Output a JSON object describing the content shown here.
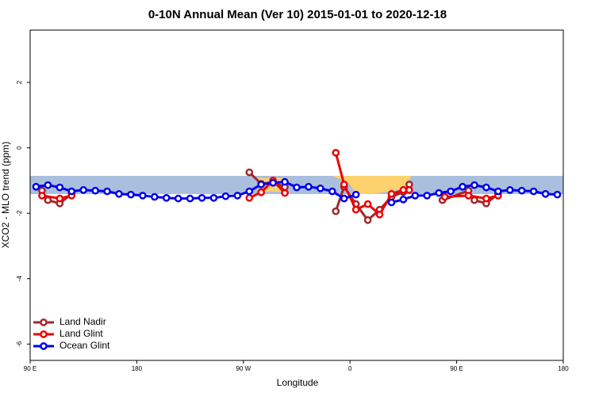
{
  "chart_data": {
    "type": "line",
    "title": "0-10N Annual Mean (Ver 10)   2015-01-01 to 2020-12-18",
    "xlabel": "Longitude",
    "ylabel": "XCO2 - MLO trend (ppm)",
    "xlim": [
      90,
      540
    ],
    "ylim": [
      -6.5,
      3.6
    ],
    "xticks": [
      {
        "value": 90,
        "label": "90 E"
      },
      180,
      {
        "value": 270,
        "label": "90 W"
      },
      {
        "value": 360,
        "label": "0"
      },
      {
        "value": 450,
        "label": "90 E"
      },
      {
        "value": 540,
        "label": "180"
      }
    ],
    "yticks": [
      -6,
      -4,
      -2,
      0,
      2
    ],
    "legend": "bottom-left",
    "series": [
      {
        "name": "Land Nadir",
        "color": "#a0282d",
        "x": [
          100,
          105,
          115,
          125,
          200,
          275,
          285,
          295,
          305,
          330,
          348,
          355,
          365,
          375,
          385,
          395,
          405,
          410,
          425,
          438,
          460,
          465,
          475,
          485
        ],
        "values": [
          -1.31,
          -1.6,
          -1.7,
          -1.41,
          null,
          -0.75,
          -1.1,
          -1.05,
          -1.2,
          null,
          -1.94,
          -1.19,
          -1.72,
          -2.21,
          -1.89,
          -1.5,
          -1.35,
          -1.12,
          null,
          -1.6,
          -1.31,
          -1.6,
          -1.7,
          -1.41
        ]
      },
      {
        "name": "Land Glint",
        "color": "#ee0000",
        "x": [
          100,
          115,
          125,
          200,
          275,
          285,
          295,
          305,
          330,
          348,
          355,
          365,
          375,
          385,
          395,
          405,
          410,
          425,
          440,
          460,
          475,
          485
        ],
        "values": [
          -1.46,
          -1.55,
          -1.46,
          null,
          -1.53,
          -1.36,
          -1.0,
          -1.38,
          null,
          -0.15,
          -1.12,
          -1.89,
          -1.72,
          -2.04,
          -1.41,
          -1.29,
          -1.29,
          null,
          -1.5,
          -1.46,
          -1.55,
          -1.46
        ]
      },
      {
        "name": "Ocean Glint",
        "color": "#0000ee",
        "x": [
          95,
          105,
          115,
          125,
          135,
          145,
          155,
          165,
          175,
          185,
          195,
          205,
          215,
          225,
          235,
          245,
          255,
          265,
          275,
          285,
          295,
          305,
          315,
          325,
          335,
          345,
          355,
          365,
          380,
          395,
          405,
          415,
          425,
          435,
          445,
          455,
          465,
          475,
          485,
          495,
          505,
          515,
          525,
          535
        ],
        "values": [
          -1.19,
          -1.14,
          -1.21,
          -1.33,
          -1.29,
          -1.31,
          -1.33,
          -1.41,
          -1.43,
          -1.46,
          -1.5,
          -1.53,
          -1.55,
          -1.55,
          -1.53,
          -1.53,
          -1.48,
          -1.46,
          -1.33,
          -1.12,
          -1.07,
          -1.04,
          -1.21,
          -1.19,
          -1.24,
          -1.33,
          -1.55,
          -1.43,
          null,
          -1.67,
          -1.58,
          -1.46,
          -1.46,
          -1.38,
          -1.33,
          -1.19,
          -1.14,
          -1.21,
          -1.33,
          -1.29,
          -1.31,
          -1.33,
          -1.41,
          -1.43
        ]
      }
    ]
  }
}
